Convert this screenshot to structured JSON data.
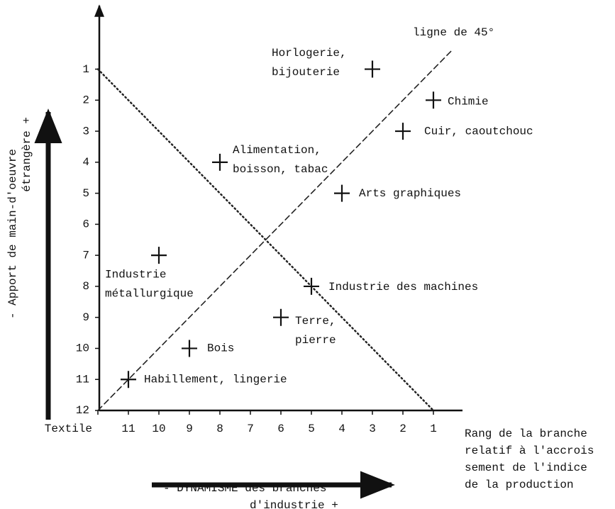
{
  "chart_data": {
    "type": "scatter",
    "annotation": "ligne de 45°",
    "x_label": [
      "- DYNAMISME des branches",
      "d'industrie +"
    ],
    "y_label": [
      "- Apport de main-d'oeuvre",
      "étrangère +"
    ],
    "x_axis_note": [
      "Rang de la branche",
      "relatif à l'accrois",
      "sement de l'indice",
      "de la production"
    ],
    "xlim": [
      12,
      0
    ],
    "ylim": [
      12,
      -1
    ],
    "xticks": [
      {
        "value": 12,
        "label": "Textile"
      },
      11,
      10,
      9,
      8,
      7,
      6,
      5,
      4,
      3,
      2,
      1
    ],
    "yticks": [
      12,
      11,
      10,
      9,
      8,
      7,
      6,
      5,
      4,
      3,
      2,
      1
    ],
    "grid": false,
    "color": "#111111",
    "points": [
      {
        "label": [
          "Horlogerie,",
          "bijouterie"
        ],
        "x": 3,
        "y": 1
      },
      {
        "label": [
          "Chimie"
        ],
        "x": 1,
        "y": 2
      },
      {
        "label": [
          "Cuir, caoutchouc"
        ],
        "x": 2,
        "y": 3
      },
      {
        "label": [
          "Alimentation,",
          "boisson, tabac"
        ],
        "x": 8,
        "y": 4
      },
      {
        "label": [
          "Arts graphiques"
        ],
        "x": 4,
        "y": 5
      },
      {
        "label": [
          "Industrie",
          "métallurgique"
        ],
        "x": 10,
        "y": 7
      },
      {
        "label": [
          "Industrie des machines"
        ],
        "x": 5,
        "y": 8
      },
      {
        "label": [
          "Terre,",
          "pierre"
        ],
        "x": 6,
        "y": 9
      },
      {
        "label": [
          "Bois"
        ],
        "x": 9,
        "y": 10
      },
      {
        "label": [
          "Habillement, lingerie"
        ],
        "x": 11,
        "y": 11
      }
    ],
    "lines": [
      {
        "style": "dashed",
        "x": [
          12,
          0.4
        ],
        "y": [
          12,
          0.4
        ]
      },
      {
        "style": "dotted",
        "x": [
          12,
          1
        ],
        "y": [
          1,
          12
        ]
      }
    ]
  }
}
